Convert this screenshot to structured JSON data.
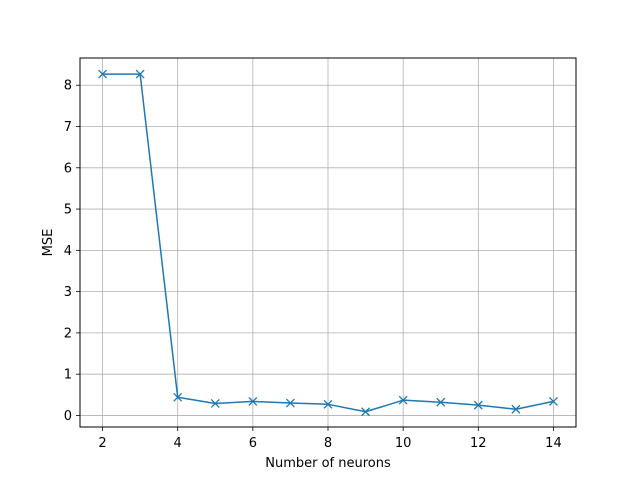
{
  "chart_data": {
    "type": "line",
    "title": "",
    "xlabel": "Number of neurons",
    "ylabel": "MSE",
    "xlim": [
      1.4,
      14.6
    ],
    "ylim": [
      -0.28,
      8.66
    ],
    "xticks": [
      2,
      4,
      6,
      8,
      10,
      12,
      14
    ],
    "yticks": [
      0,
      1,
      2,
      3,
      4,
      5,
      6,
      7,
      8
    ],
    "grid": true,
    "marker": "x",
    "series": [
      {
        "color": "#1f77b4",
        "x": [
          2,
          3,
          4,
          5,
          6,
          7,
          8,
          9,
          10,
          11,
          12,
          13,
          14
        ],
        "y": [
          8.27,
          8.27,
          0.44,
          0.29,
          0.34,
          0.3,
          0.27,
          0.09,
          0.37,
          0.32,
          0.25,
          0.15,
          0.34
        ]
      }
    ]
  }
}
